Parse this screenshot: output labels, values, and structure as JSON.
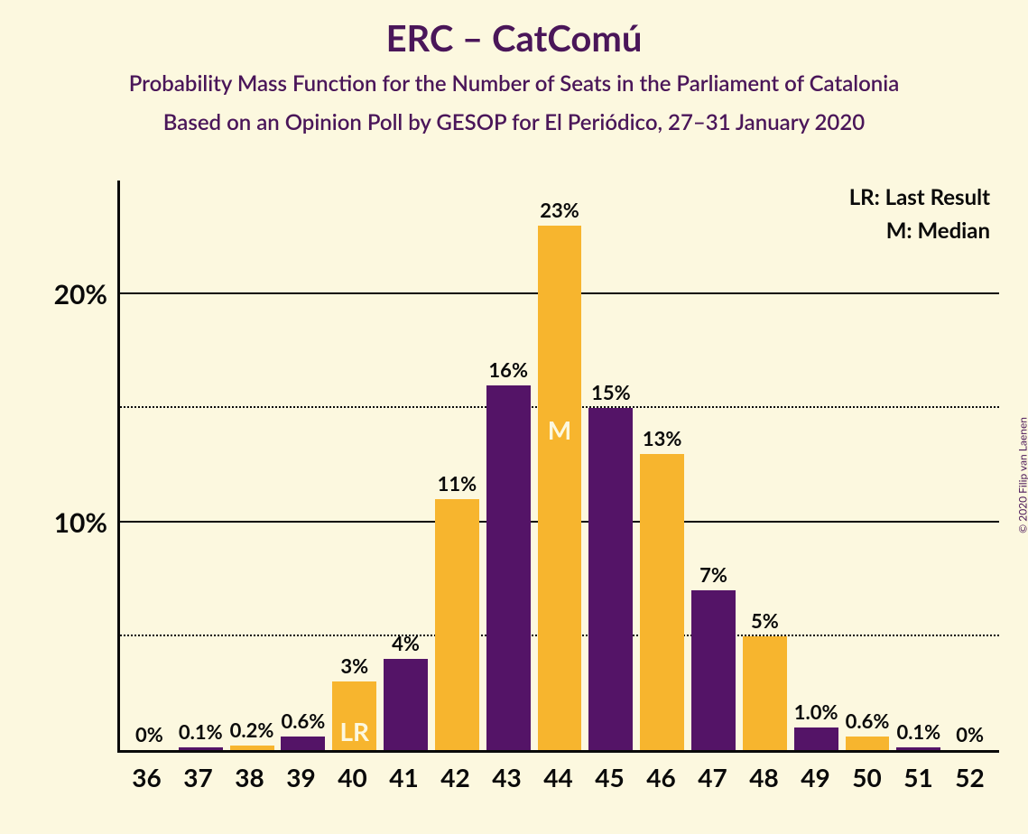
{
  "copyright": "© 2020 Filip van Laenen",
  "title": "ERC – CatComú",
  "subtitle1": "Probability Mass Function for the Number of Seats in the Parliament of Catalonia",
  "subtitle2": "Based on an Opinion Poll by GESOP for El Periódico, 27–31 January 2020",
  "legend": {
    "lr": "LR: Last Result",
    "m": "M: Median"
  },
  "chart": {
    "type": "bar",
    "background_color": "#fcf8df",
    "axis_color": "#0a0a0a",
    "text_color": "#0a0a0a",
    "colors": {
      "purple": "#541467",
      "orange": "#f7b52e"
    },
    "y_axis": {
      "max": 25,
      "ticks": [
        {
          "value": 5,
          "style": "dotted",
          "label": ""
        },
        {
          "value": 10,
          "style": "solid",
          "label": "10%"
        },
        {
          "value": 15,
          "style": "dotted",
          "label": ""
        },
        {
          "value": 20,
          "style": "solid",
          "label": "20%"
        }
      ]
    },
    "bars": [
      {
        "x": "36",
        "value": 0.0,
        "label": "0%",
        "color": "orange",
        "inside": "",
        "inside_pos": ""
      },
      {
        "x": "37",
        "value": 0.1,
        "label": "0.1%",
        "color": "purple",
        "inside": "",
        "inside_pos": ""
      },
      {
        "x": "38",
        "value": 0.2,
        "label": "0.2%",
        "color": "orange",
        "inside": "",
        "inside_pos": ""
      },
      {
        "x": "39",
        "value": 0.6,
        "label": "0.6%",
        "color": "purple",
        "inside": "",
        "inside_pos": ""
      },
      {
        "x": "40",
        "value": 3.0,
        "label": "3%",
        "color": "orange",
        "inside": "LR",
        "inside_pos": "bottom"
      },
      {
        "x": "41",
        "value": 4.0,
        "label": "4%",
        "color": "purple",
        "inside": "",
        "inside_pos": ""
      },
      {
        "x": "42",
        "value": 11.0,
        "label": "11%",
        "color": "orange",
        "inside": "",
        "inside_pos": ""
      },
      {
        "x": "43",
        "value": 16.0,
        "label": "16%",
        "color": "purple",
        "inside": "",
        "inside_pos": ""
      },
      {
        "x": "44",
        "value": 23.0,
        "label": "23%",
        "color": "orange",
        "inside": "M",
        "inside_pos": "upper"
      },
      {
        "x": "45",
        "value": 15.0,
        "label": "15%",
        "color": "purple",
        "inside": "",
        "inside_pos": ""
      },
      {
        "x": "46",
        "value": 13.0,
        "label": "13%",
        "color": "orange",
        "inside": "",
        "inside_pos": ""
      },
      {
        "x": "47",
        "value": 7.0,
        "label": "7%",
        "color": "purple",
        "inside": "",
        "inside_pos": ""
      },
      {
        "x": "48",
        "value": 5.0,
        "label": "5%",
        "color": "orange",
        "inside": "",
        "inside_pos": ""
      },
      {
        "x": "49",
        "value": 1.0,
        "label": "1.0%",
        "color": "purple",
        "inside": "",
        "inside_pos": ""
      },
      {
        "x": "50",
        "value": 0.6,
        "label": "0.6%",
        "color": "orange",
        "inside": "",
        "inside_pos": ""
      },
      {
        "x": "51",
        "value": 0.1,
        "label": "0.1%",
        "color": "purple",
        "inside": "",
        "inside_pos": ""
      },
      {
        "x": "52",
        "value": 0.0,
        "label": "0%",
        "color": "orange",
        "inside": "",
        "inside_pos": ""
      }
    ]
  }
}
